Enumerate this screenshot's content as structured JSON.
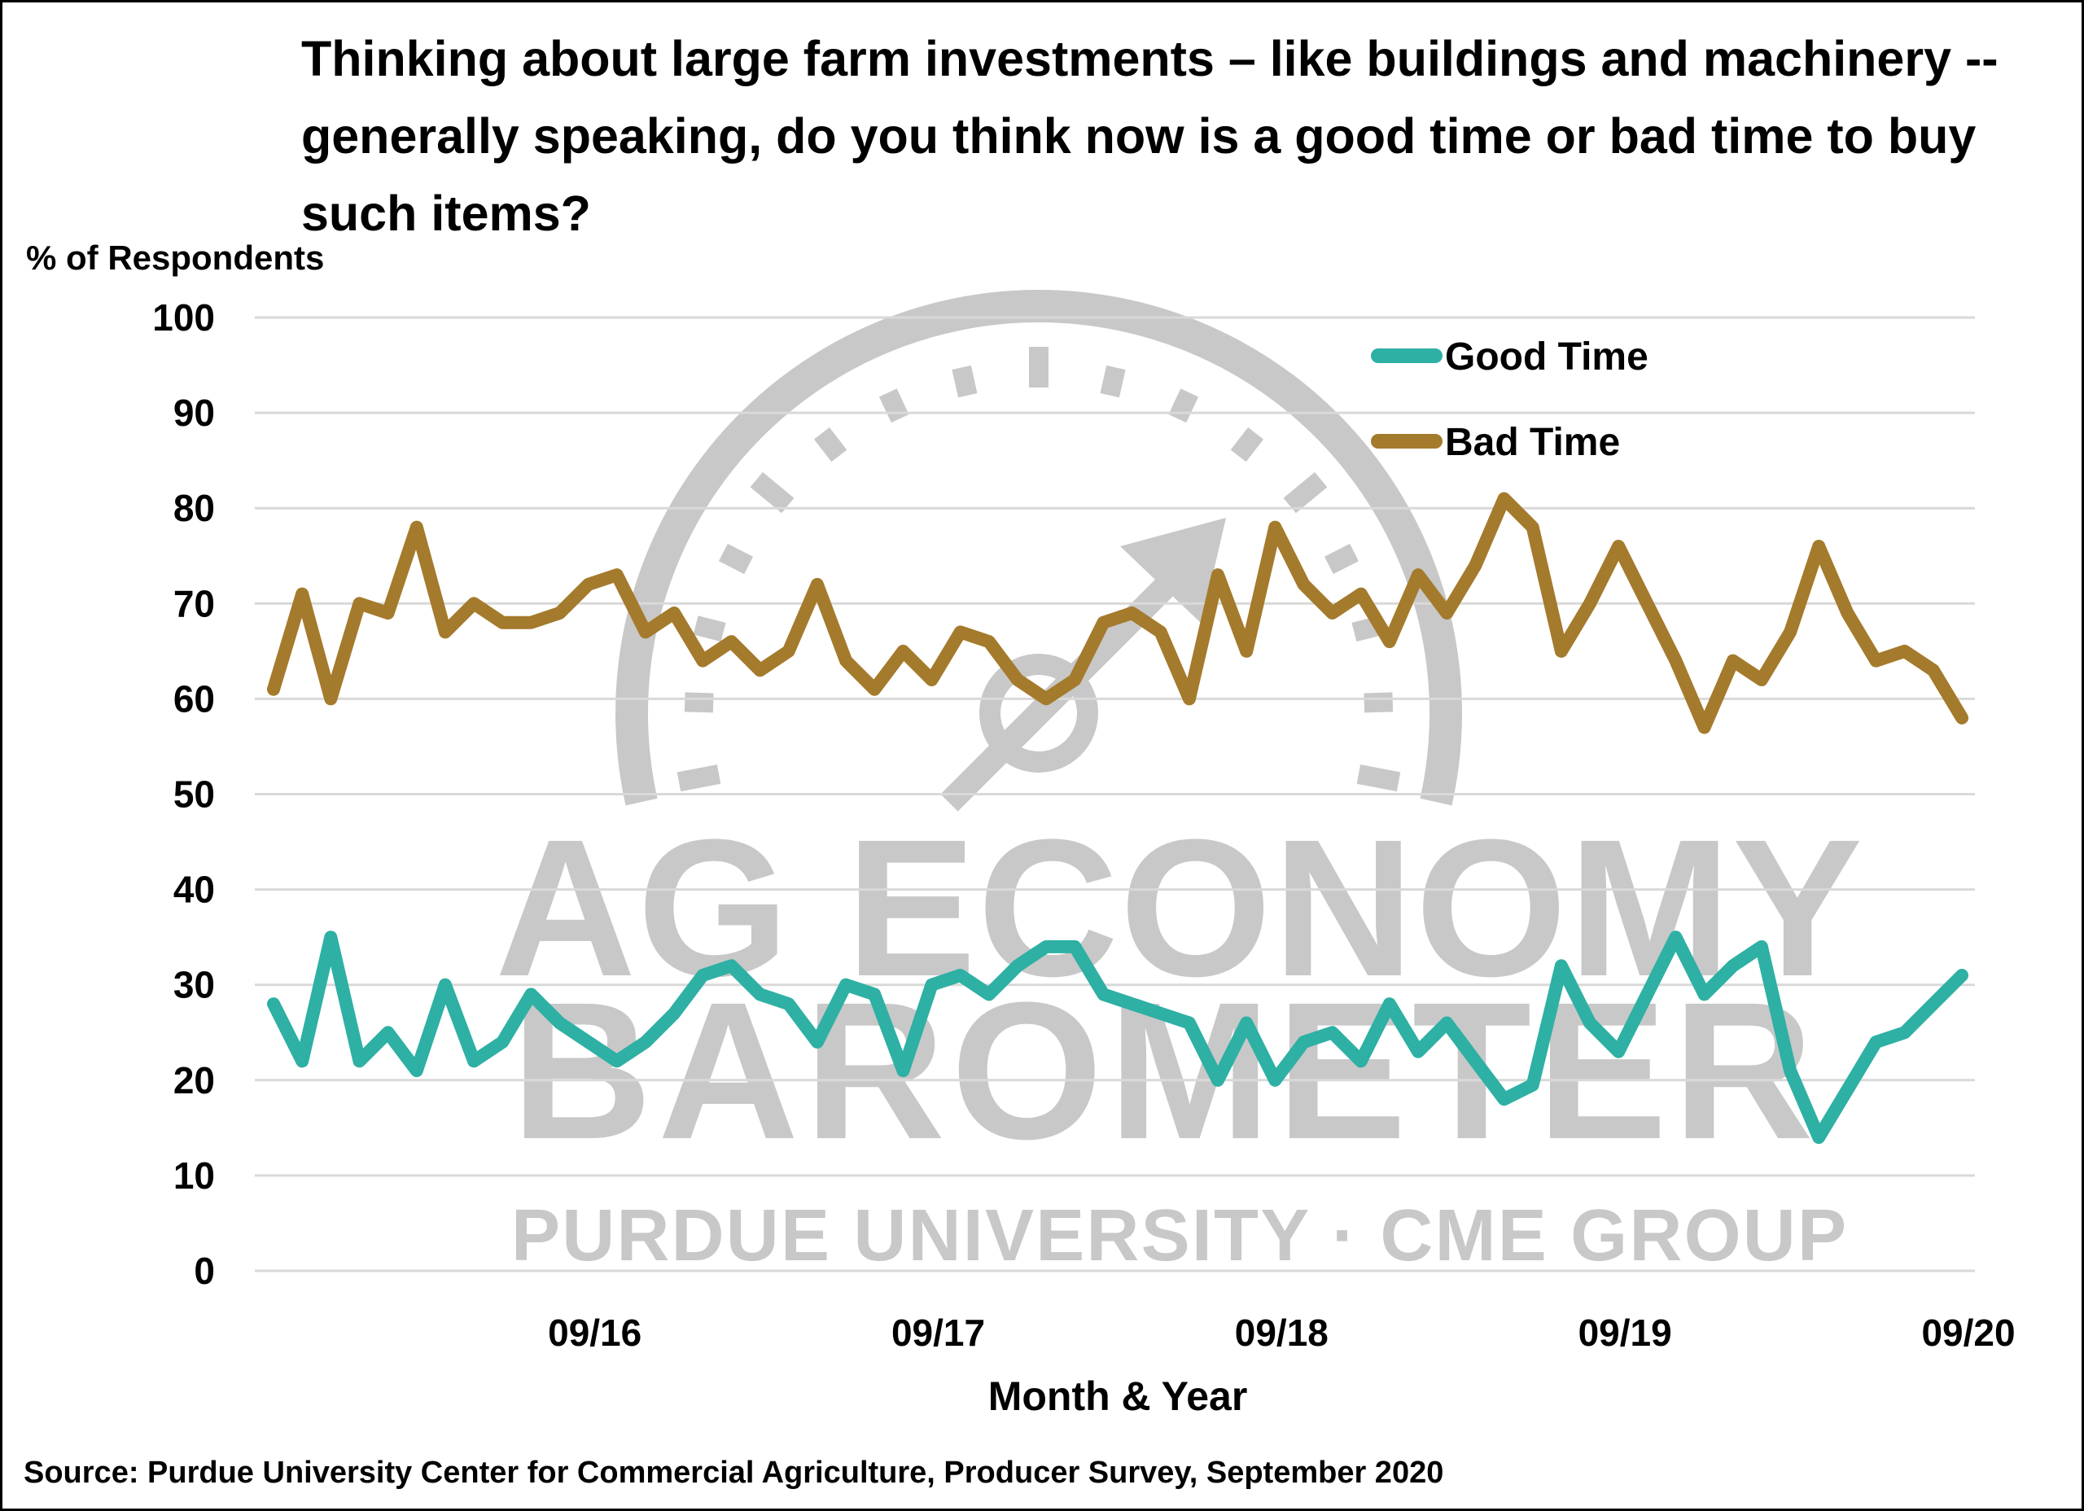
{
  "chart_data": {
    "type": "line",
    "title": "Thinking about large farm investments – like buildings and machinery -- generally speaking, do you think now is a good time or bad time to buy such items?",
    "ylabel": "% of Respondents",
    "xlabel": "Month & Year",
    "ylim": [
      0,
      100
    ],
    "yticks": [
      0,
      10,
      20,
      30,
      40,
      50,
      60,
      70,
      80,
      90,
      100
    ],
    "xtick_labels": [
      "09/16",
      "09/17",
      "09/18",
      "09/19",
      "09/20"
    ],
    "grid": "horizontal",
    "legend_position": "top-right",
    "x": [
      "10/15",
      "11/15",
      "12/15",
      "01/16",
      "02/16",
      "03/16",
      "04/16",
      "05/16",
      "06/16",
      "07/16",
      "08/16",
      "09/16",
      "10/16",
      "11/16",
      "12/16",
      "01/17",
      "02/17",
      "03/17",
      "04/17",
      "05/17",
      "06/17",
      "07/17",
      "08/17",
      "09/17",
      "10/17",
      "11/17",
      "12/17",
      "01/18",
      "02/18",
      "03/18",
      "04/18",
      "05/18",
      "06/18",
      "07/18",
      "08/18",
      "09/18",
      "10/18",
      "11/18",
      "12/18",
      "01/19",
      "02/19",
      "03/19",
      "04/19",
      "05/19",
      "06/19",
      "07/19",
      "08/19",
      "09/19",
      "10/19",
      "11/19",
      "12/19",
      "01/20",
      "02/20",
      "03/20",
      "04/20",
      "05/20",
      "06/20",
      "07/20",
      "08/20",
      "09/20"
    ],
    "series": [
      {
        "name": "Good Time",
        "color": "#2eb0a4",
        "values": [
          28,
          22,
          35,
          22,
          25,
          21,
          30,
          22,
          24,
          29,
          26,
          24,
          22,
          24,
          27,
          31,
          32,
          29,
          28,
          24,
          30,
          29,
          21,
          30,
          31,
          29,
          32,
          34,
          34,
          29,
          28,
          27,
          26,
          20,
          26,
          20,
          24,
          25,
          22,
          28,
          23,
          26,
          22,
          18,
          19.5,
          32,
          26,
          23,
          29,
          35,
          29,
          32,
          34,
          21,
          14,
          19,
          24,
          25,
          28,
          31
        ]
      },
      {
        "name": "Bad Time",
        "color": "#a47a2c",
        "values": [
          61,
          71,
          60,
          70,
          69,
          78,
          67,
          70,
          68,
          68,
          69,
          72,
          73,
          67,
          69,
          64,
          66,
          63,
          65,
          72,
          64,
          61,
          65,
          62,
          67,
          66,
          62,
          60,
          62,
          68,
          69,
          67,
          60,
          73,
          65,
          78,
          72,
          69,
          71,
          66,
          73,
          69,
          74,
          81,
          78,
          65,
          70,
          76,
          70,
          64,
          57,
          64,
          62,
          67,
          76,
          69,
          64,
          65,
          63,
          58
        ]
      }
    ]
  },
  "watermark": {
    "line1": "AG ECONOMY",
    "line2": "BAROMETER",
    "line3": "PURDUE UNIVERSITY · CME GROUP",
    "color": "#c8c8c8"
  },
  "source": "Source: Purdue University Center for Commercial Agriculture, Producer Survey, September 2020"
}
